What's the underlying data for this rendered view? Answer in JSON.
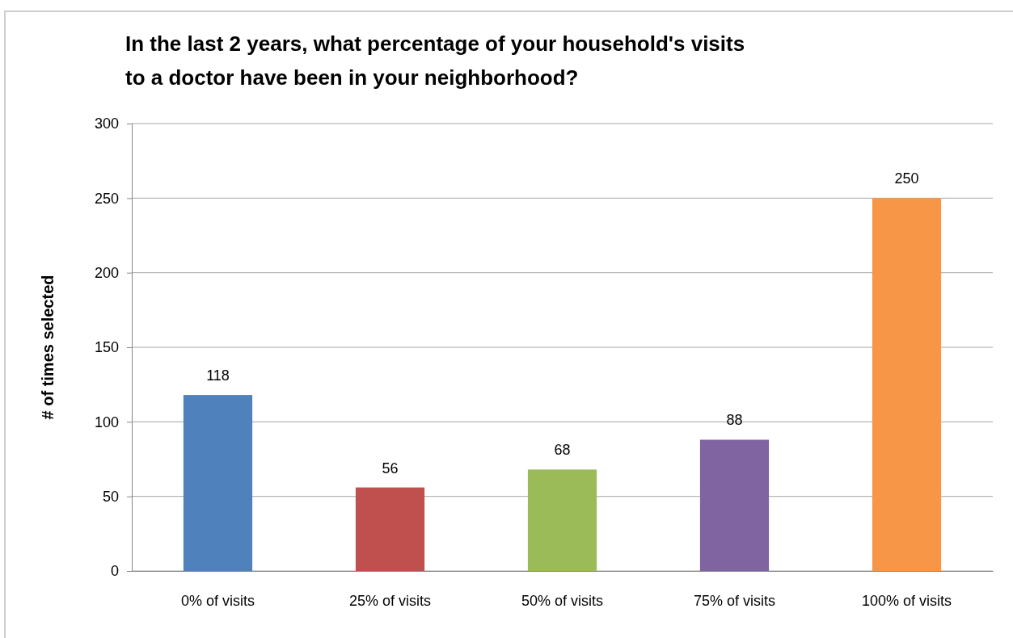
{
  "chart_data": {
    "type": "bar",
    "title": "In the last 2 years, what percentage of your household's visits\nto a doctor have been in your neighborhood?",
    "ylabel": "# of times selected",
    "categories": [
      "0% of visits",
      "25% of visits",
      "50% of visits",
      "75% of visits",
      "100% of visits"
    ],
    "values": [
      118,
      56,
      68,
      88,
      250
    ],
    "colors": [
      "#4f81bd",
      "#c0504d",
      "#9bbb59",
      "#8064a2",
      "#f79646"
    ],
    "ylim": [
      0,
      300
    ],
    "yticks": [
      0,
      50,
      100,
      150,
      200,
      250,
      300
    ],
    "grid": "y",
    "data_labels": true
  }
}
